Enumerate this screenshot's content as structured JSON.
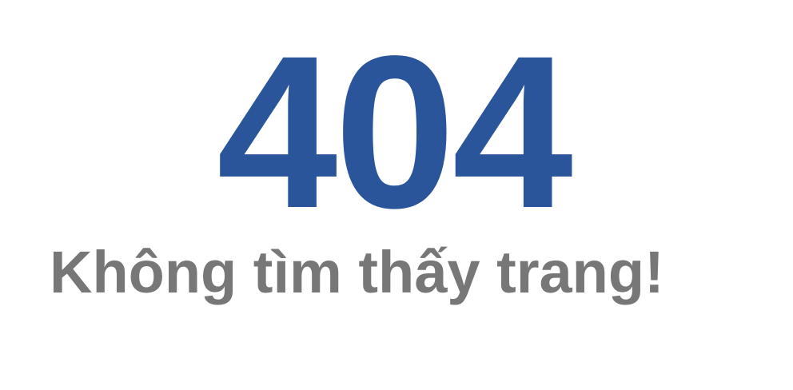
{
  "error": {
    "code": "404",
    "message": "Không tìm thấy trang!"
  },
  "colors": {
    "code": "#2b559b",
    "message": "#777777",
    "background": "#ffffff"
  }
}
